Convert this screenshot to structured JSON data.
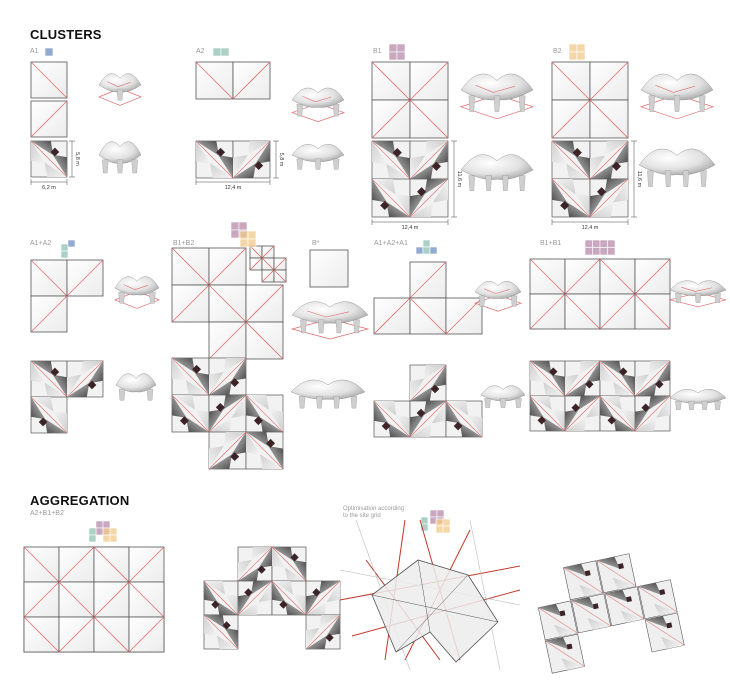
{
  "headings": {
    "clusters": "CLUSTERS",
    "aggregation": "AGGREGATION"
  },
  "labels": {
    "a1": "A1",
    "a2": "A2",
    "b1": "B1",
    "b2": "B2",
    "a1a2": "A1+A2",
    "b1b2": "B1+B2",
    "bstar": "B*",
    "a1a2a1": "A1+A2+A1",
    "b1b1": "B1+B1",
    "a2b1b2": "A2+B1+B2",
    "bstar_inside": "B*"
  },
  "dimensions": {
    "a1_width": "6,2 m",
    "a1_height": "5,8 m",
    "a2_width": "12,4 m",
    "a2_height": "5,8 m",
    "b1_width": "12,4 m",
    "b1_height": "11,6 m",
    "b2_width": "12,4 m",
    "b2_height": "11,6 m"
  },
  "optimisation_note": {
    "line1": "Optimisation according",
    "line2": "to the site grid"
  },
  "colors": {
    "red_lines": "#e06a6a",
    "outline": "#555555",
    "grid_red": "#c0392b",
    "tile_A1": "#6f8fc4",
    "tile_A2": "#8fc1b4",
    "tile_B1": "#b58aa9",
    "tile_B2": "#f0c98a"
  }
}
